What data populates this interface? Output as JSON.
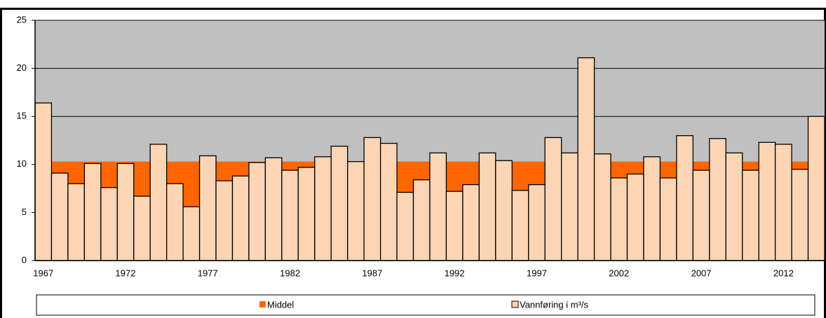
{
  "chart_data": {
    "type": "bar",
    "categories": [
      "1967",
      null,
      null,
      null,
      null,
      "1972",
      null,
      null,
      null,
      null,
      "1977",
      null,
      null,
      null,
      null,
      "1982",
      null,
      null,
      null,
      null,
      "1987",
      null,
      null,
      null,
      null,
      "1992",
      null,
      null,
      null,
      null,
      "1997",
      null,
      null,
      null,
      null,
      "2002",
      null,
      null,
      null,
      null,
      "2007",
      null,
      null,
      null,
      null,
      "2012",
      null,
      null
    ],
    "series": [
      {
        "name": "Middel",
        "color": "#ff6600",
        "values": [
          10.3,
          10.3,
          10.3,
          10.3,
          10.3,
          10.3,
          10.3,
          10.3,
          10.3,
          10.3,
          10.3,
          10.3,
          10.3,
          10.3,
          10.3,
          10.3,
          10.3,
          10.3,
          10.3,
          10.3,
          10.3,
          10.3,
          10.3,
          10.3,
          10.3,
          10.3,
          10.3,
          10.3,
          10.3,
          10.3,
          10.3,
          10.3,
          10.3,
          10.3,
          10.3,
          10.3,
          10.3,
          10.3,
          10.3,
          10.3,
          10.3,
          10.3,
          10.3,
          10.3,
          10.3,
          10.3,
          10.3,
          10.3
        ]
      },
      {
        "name": "Vannføring i m³/s",
        "color": "#fcd5b5",
        "values": [
          16.4,
          9.1,
          8.0,
          10.1,
          7.6,
          10.1,
          6.7,
          12.1,
          8.0,
          5.6,
          10.9,
          8.3,
          8.8,
          10.2,
          10.7,
          9.4,
          9.7,
          10.8,
          11.9,
          10.3,
          12.8,
          12.2,
          7.1,
          8.4,
          11.2,
          7.2,
          7.9,
          11.2,
          10.4,
          7.3,
          7.9,
          12.8,
          11.2,
          21.1,
          11.1,
          8.6,
          9.0,
          10.8,
          8.6,
          13.0,
          9.4,
          12.7,
          11.2,
          9.4,
          12.3,
          12.1,
          9.5,
          15.0
        ]
      }
    ],
    "ylim": [
      0,
      25
    ],
    "yticks": [
      0,
      5,
      10,
      15,
      20,
      25
    ],
    "grid": true,
    "plot_background": "#c0c0c0"
  }
}
